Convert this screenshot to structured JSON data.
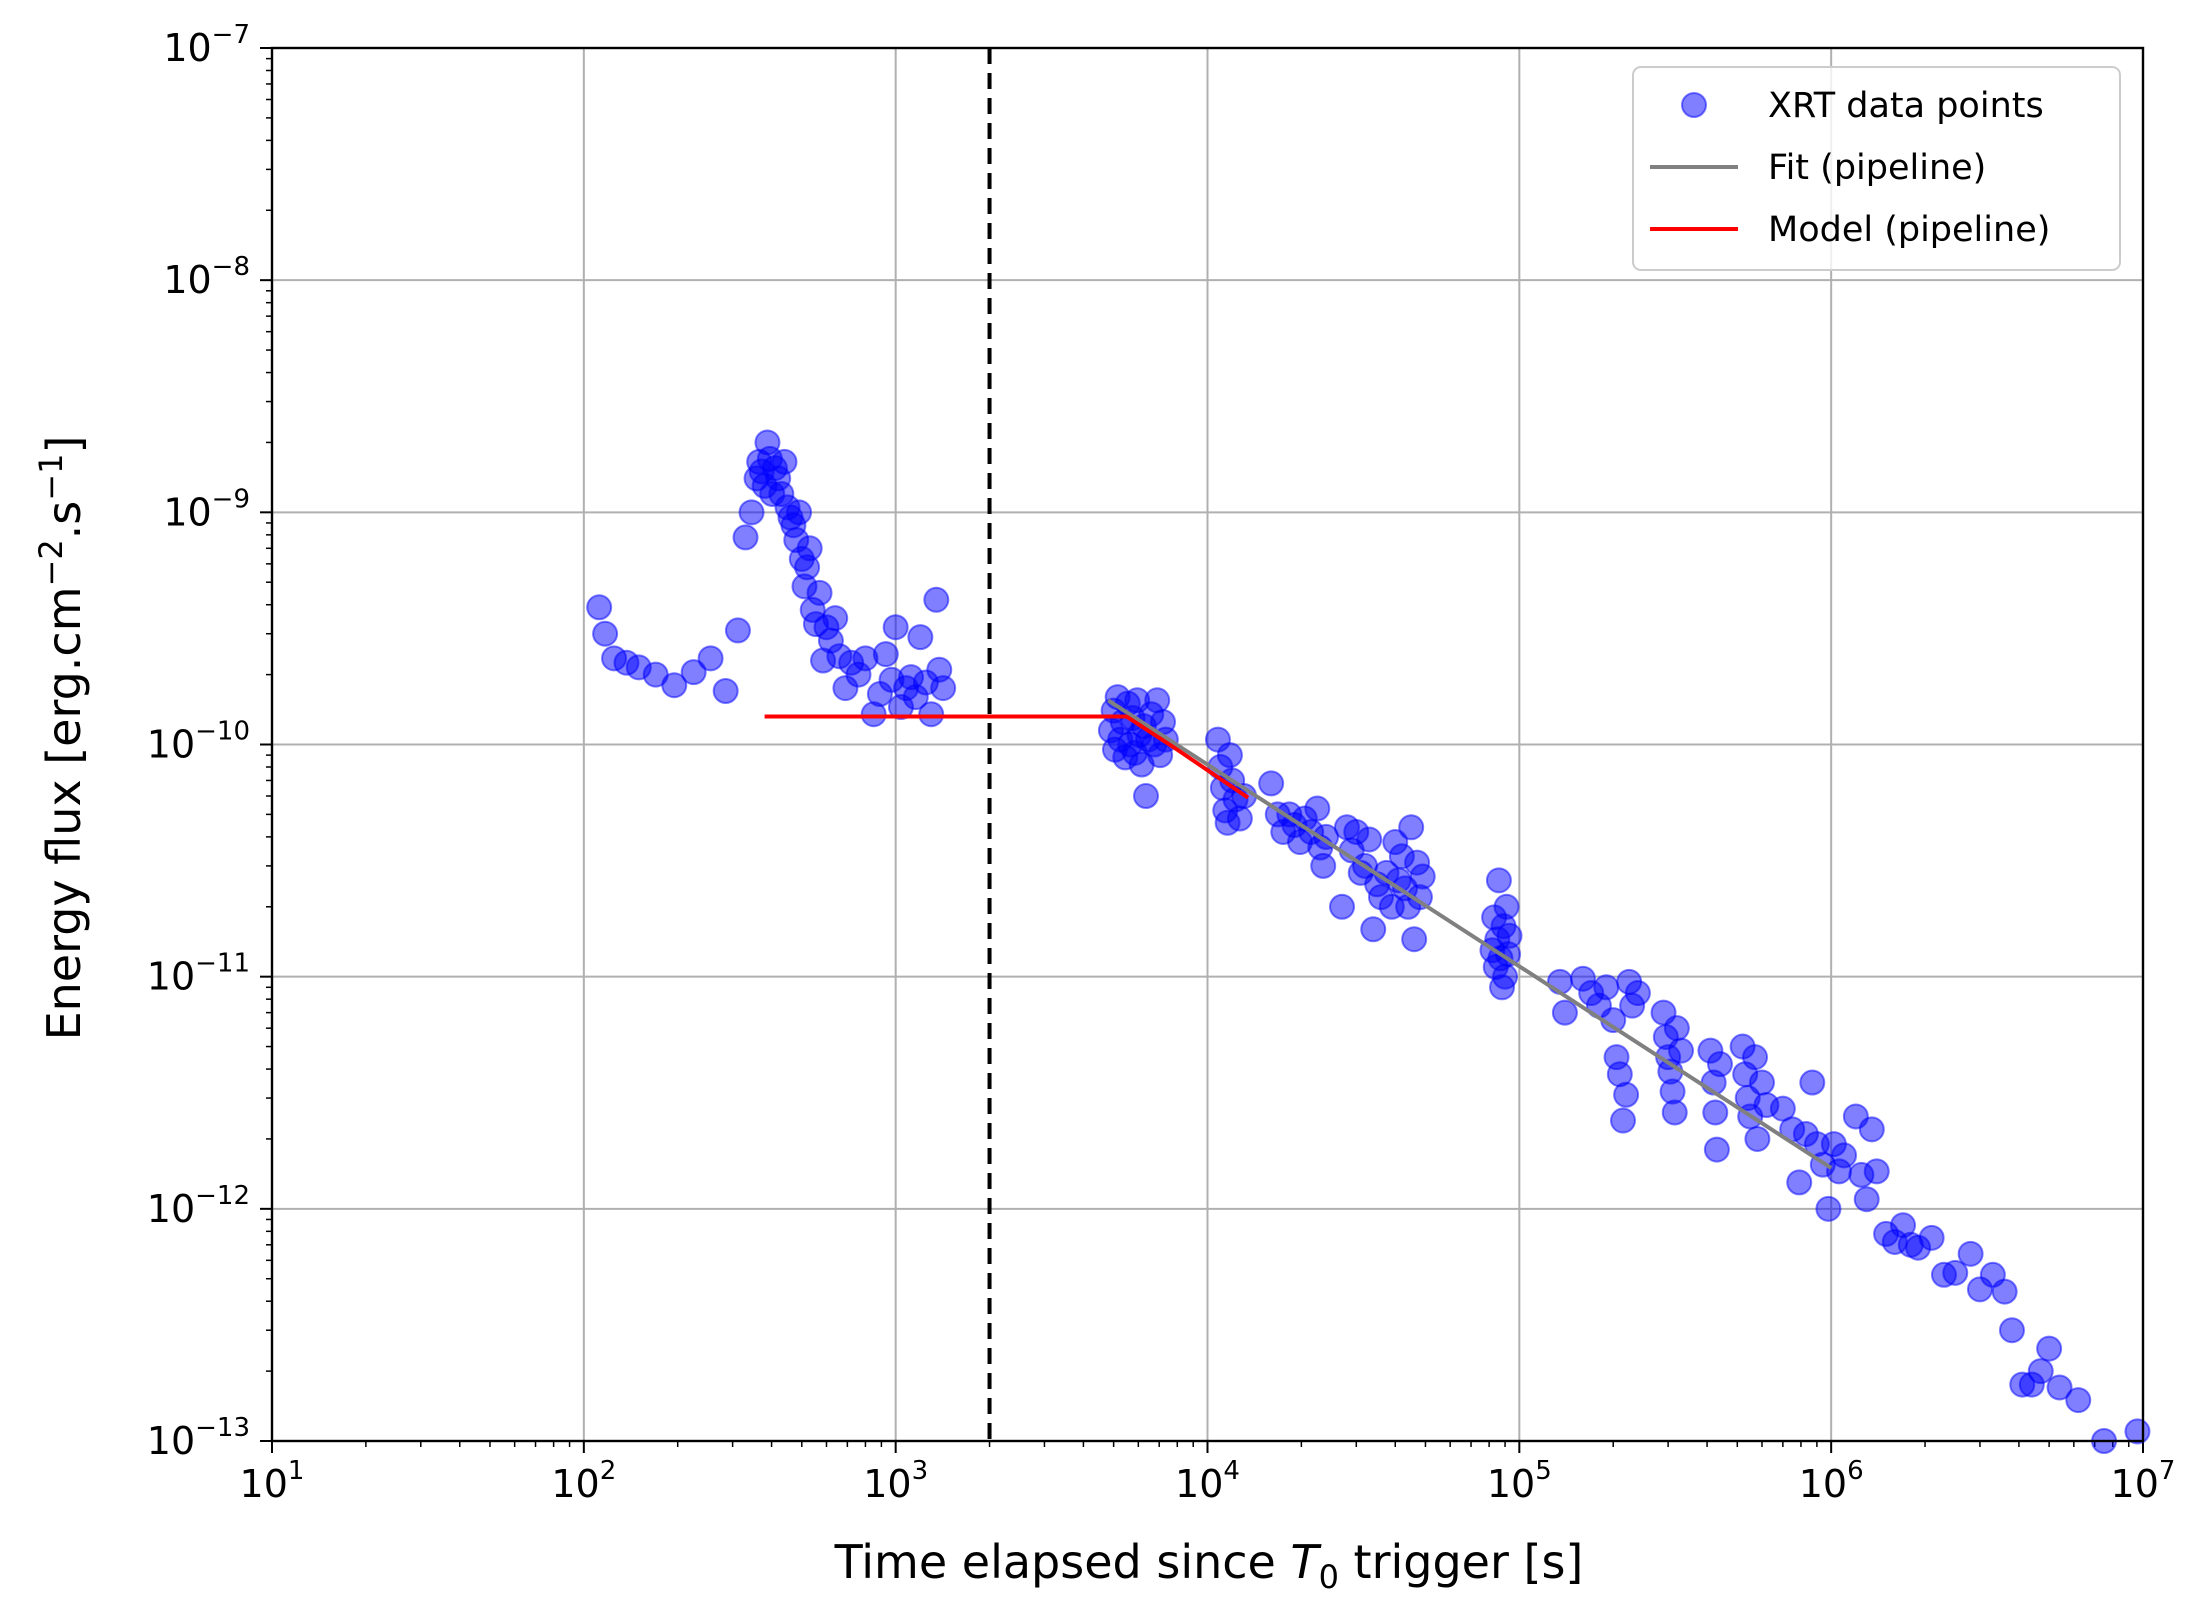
{
  "chart_data": {
    "type": "scatter",
    "xscale": "log",
    "yscale": "log",
    "xlim": [
      10,
      10000000
    ],
    "ylim": [
      1e-13,
      1e-07
    ],
    "xlabel": {
      "pre": "Time elapsed since ",
      "sym": "T",
      "sub": "0",
      "post": " trigger [s]"
    },
    "ylabel": {
      "text": "Energy flux [erg.cm",
      "sup1": "−2",
      "mid": ".s",
      "sup2": "−1",
      "end": "]"
    },
    "x_ticks": [
      {
        "base": "10",
        "exp": "1",
        "value": 10
      },
      {
        "base": "10",
        "exp": "2",
        "value": 100
      },
      {
        "base": "10",
        "exp": "3",
        "value": 1000
      },
      {
        "base": "10",
        "exp": "4",
        "value": 10000
      },
      {
        "base": "10",
        "exp": "5",
        "value": 100000
      },
      {
        "base": "10",
        "exp": "6",
        "value": 1000000
      },
      {
        "base": "10",
        "exp": "7",
        "value": 10000000
      }
    ],
    "y_ticks": [
      {
        "base": "10",
        "exp": "−13",
        "value": 1e-13
      },
      {
        "base": "10",
        "exp": "−12",
        "value": 1e-12
      },
      {
        "base": "10",
        "exp": "−11",
        "value": 1e-11
      },
      {
        "base": "10",
        "exp": "−10",
        "value": 1e-10
      },
      {
        "base": "10",
        "exp": "−9",
        "value": 1e-09
      },
      {
        "base": "10",
        "exp": "−8",
        "value": 1e-08
      },
      {
        "base": "10",
        "exp": "−7",
        "value": 1e-07
      }
    ],
    "grid": true,
    "legend_position": "top-right",
    "legend": [
      {
        "label": "XRT data points",
        "kind": "marker",
        "color": "#0000ff"
      },
      {
        "label": "Fit (pipeline)",
        "kind": "line",
        "color": "#808080"
      },
      {
        "label": "Model (pipeline)",
        "kind": "line",
        "color": "#ff0000"
      }
    ],
    "trigger_line": {
      "x": 2000,
      "color": "#000000",
      "style": "dashed"
    },
    "series": [
      {
        "name": "XRT data points",
        "type": "scatter",
        "color": "#0000ff",
        "alpha": 0.5,
        "points": [
          [
            112,
            3.9e-10
          ],
          [
            117,
            3e-10
          ],
          [
            125,
            2.35e-10
          ],
          [
            137,
            2.25e-10
          ],
          [
            150,
            2.15e-10
          ],
          [
            170,
            2e-10
          ],
          [
            195,
            1.8e-10
          ],
          [
            225,
            2.05e-10
          ],
          [
            255,
            2.35e-10
          ],
          [
            285,
            1.7e-10
          ],
          [
            312,
            3.1e-10
          ],
          [
            330,
            7.8e-10
          ],
          [
            345,
            1e-09
          ],
          [
            358,
            1.4e-09
          ],
          [
            365,
            1.65e-09
          ],
          [
            372,
            1.5e-09
          ],
          [
            380,
            1.3e-09
          ],
          [
            388,
            2e-09
          ],
          [
            395,
            1.7e-09
          ],
          [
            402,
            1.2e-09
          ],
          [
            410,
            1.55e-09
          ],
          [
            420,
            1.4e-09
          ],
          [
            430,
            1.2e-09
          ],
          [
            440,
            1.65e-09
          ],
          [
            450,
            1.05e-09
          ],
          [
            460,
            9.5e-10
          ],
          [
            470,
            8.8e-10
          ],
          [
            480,
            7.6e-10
          ],
          [
            490,
            1e-09
          ],
          [
            500,
            6.3e-10
          ],
          [
            510,
            4.8e-10
          ],
          [
            520,
            5.8e-10
          ],
          [
            530,
            7e-10
          ],
          [
            542,
            3.8e-10
          ],
          [
            555,
            3.3e-10
          ],
          [
            570,
            4.5e-10
          ],
          [
            585,
            2.3e-10
          ],
          [
            600,
            3.2e-10
          ],
          [
            620,
            2.8e-10
          ],
          [
            640,
            3.5e-10
          ],
          [
            660,
            2.4e-10
          ],
          [
            690,
            1.75e-10
          ],
          [
            720,
            2.25e-10
          ],
          [
            760,
            2e-10
          ],
          [
            800,
            2.35e-10
          ],
          [
            850,
            1.35e-10
          ],
          [
            890,
            1.65e-10
          ],
          [
            930,
            2.45e-10
          ],
          [
            970,
            1.9e-10
          ],
          [
            1000,
            3.2e-10
          ],
          [
            1040,
            1.45e-10
          ],
          [
            1080,
            1.75e-10
          ],
          [
            1120,
            1.95e-10
          ],
          [
            1160,
            1.6e-10
          ],
          [
            1200,
            2.9e-10
          ],
          [
            1250,
            1.85e-10
          ],
          [
            1300,
            1.35e-10
          ],
          [
            1350,
            4.2e-10
          ],
          [
            1380,
            2.1e-10
          ],
          [
            1420,
            1.75e-10
          ],
          [
            4900,
            1.15e-10
          ],
          [
            5000,
            1.4e-10
          ],
          [
            5050,
            9.5e-11
          ],
          [
            5150,
            1.6e-10
          ],
          [
            5250,
            1.05e-10
          ],
          [
            5350,
            1.25e-10
          ],
          [
            5450,
            8.8e-11
          ],
          [
            5550,
            1.5e-10
          ],
          [
            5650,
            1e-10
          ],
          [
            5750,
            1.3e-10
          ],
          [
            5850,
            9.2e-11
          ],
          [
            5950,
            1.55e-10
          ],
          [
            6050,
            1.1e-10
          ],
          [
            6150,
            8.2e-11
          ],
          [
            6250,
            1.2e-10
          ],
          [
            6350,
            6e-11
          ],
          [
            6450,
            1.05e-10
          ],
          [
            6600,
            1.35e-10
          ],
          [
            6750,
            1e-10
          ],
          [
            6900,
            1.55e-10
          ],
          [
            7050,
            9e-11
          ],
          [
            7200,
            1.25e-10
          ],
          [
            7350,
            1.05e-10
          ],
          [
            10800,
            1.05e-10
          ],
          [
            11000,
            8e-11
          ],
          [
            11200,
            6.5e-11
          ],
          [
            11400,
            5.2e-11
          ],
          [
            11600,
            4.6e-11
          ],
          [
            11800,
            9e-11
          ],
          [
            12000,
            7e-11
          ],
          [
            12300,
            5.8e-11
          ],
          [
            12700,
            4.8e-11
          ],
          [
            13100,
            6e-11
          ],
          [
            16000,
            6.8e-11
          ],
          [
            16800,
            5e-11
          ],
          [
            17500,
            4.2e-11
          ],
          [
            18300,
            5e-11
          ],
          [
            19000,
            4.5e-11
          ],
          [
            19800,
            3.8e-11
          ],
          [
            20500,
            4.8e-11
          ],
          [
            21500,
            4.2e-11
          ],
          [
            22500,
            5.3e-11
          ],
          [
            23000,
            3.6e-11
          ],
          [
            23500,
            3e-11
          ],
          [
            24000,
            4e-11
          ],
          [
            27000,
            2e-11
          ],
          [
            28000,
            4.4e-11
          ],
          [
            29000,
            3.5e-11
          ],
          [
            30000,
            4.2e-11
          ],
          [
            31000,
            2.8e-11
          ],
          [
            32000,
            3e-11
          ],
          [
            33000,
            3.9e-11
          ],
          [
            34000,
            1.6e-11
          ],
          [
            35000,
            2.5e-11
          ],
          [
            36000,
            2.2e-11
          ],
          [
            37500,
            2.8e-11
          ],
          [
            39000,
            2e-11
          ],
          [
            40000,
            3.8e-11
          ],
          [
            41000,
            2.6e-11
          ],
          [
            42000,
            3.3e-11
          ],
          [
            43000,
            2.4e-11
          ],
          [
            44000,
            2e-11
          ],
          [
            45000,
            4.4e-11
          ],
          [
            46000,
            1.45e-11
          ],
          [
            47000,
            3.1e-11
          ],
          [
            48000,
            2.2e-11
          ],
          [
            49000,
            2.7e-11
          ],
          [
            82000,
            1.3e-11
          ],
          [
            83000,
            1.8e-11
          ],
          [
            84000,
            1.1e-11
          ],
          [
            85000,
            1.45e-11
          ],
          [
            86000,
            2.6e-11
          ],
          [
            87000,
            1.2e-11
          ],
          [
            88000,
            9e-12
          ],
          [
            89000,
            1.65e-11
          ],
          [
            90000,
            1e-11
          ],
          [
            91000,
            2e-11
          ],
          [
            92000,
            1.25e-11
          ],
          [
            93000,
            1.5e-11
          ],
          [
            135000,
            9.5e-12
          ],
          [
            140000,
            7e-12
          ],
          [
            160000,
            9.8e-12
          ],
          [
            170000,
            8.5e-12
          ],
          [
            180000,
            7.5e-12
          ],
          [
            190000,
            9e-12
          ],
          [
            200000,
            6.5e-12
          ],
          [
            205000,
            4.5e-12
          ],
          [
            210000,
            3.8e-12
          ],
          [
            215000,
            2.4e-12
          ],
          [
            220000,
            3.1e-12
          ],
          [
            225000,
            9.5e-12
          ],
          [
            230000,
            7.5e-12
          ],
          [
            240000,
            8.5e-12
          ],
          [
            290000,
            7e-12
          ],
          [
            295000,
            5.5e-12
          ],
          [
            300000,
            4.5e-12
          ],
          [
            305000,
            3.9e-12
          ],
          [
            310000,
            3.2e-12
          ],
          [
            315000,
            2.6e-12
          ],
          [
            320000,
            6e-12
          ],
          [
            330000,
            4.8e-12
          ],
          [
            410000,
            4.8e-12
          ],
          [
            420000,
            3.5e-12
          ],
          [
            425000,
            2.6e-12
          ],
          [
            430000,
            1.8e-12
          ],
          [
            440000,
            4.2e-12
          ],
          [
            520000,
            5e-12
          ],
          [
            530000,
            3.8e-12
          ],
          [
            540000,
            3e-12
          ],
          [
            550000,
            2.5e-12
          ],
          [
            570000,
            4.5e-12
          ],
          [
            580000,
            2e-12
          ],
          [
            600000,
            3.5e-12
          ],
          [
            620000,
            2.8e-12
          ],
          [
            700000,
            2.7e-12
          ],
          [
            750000,
            2.2e-12
          ],
          [
            790000,
            1.3e-12
          ],
          [
            830000,
            2.1e-12
          ],
          [
            870000,
            3.5e-12
          ],
          [
            900000,
            1.9e-12
          ],
          [
            940000,
            1.55e-12
          ],
          [
            980000,
            1e-12
          ],
          [
            1020000,
            1.9e-12
          ],
          [
            1060000,
            1.45e-12
          ],
          [
            1100000,
            1.7e-12
          ],
          [
            1200000,
            2.5e-12
          ],
          [
            1250000,
            1.4e-12
          ],
          [
            1300000,
            1.1e-12
          ],
          [
            1350000,
            2.2e-12
          ],
          [
            1400000,
            1.45e-12
          ],
          [
            1500000,
            7.8e-13
          ],
          [
            1600000,
            7.2e-13
          ],
          [
            1700000,
            8.5e-13
          ],
          [
            1800000,
            7e-13
          ],
          [
            1900000,
            6.8e-13
          ],
          [
            2100000,
            7.5e-13
          ],
          [
            2300000,
            5.2e-13
          ],
          [
            2500000,
            5.3e-13
          ],
          [
            2800000,
            6.4e-13
          ],
          [
            3000000,
            4.5e-13
          ],
          [
            3300000,
            5.2e-13
          ],
          [
            3600000,
            4.4e-13
          ],
          [
            3800000,
            3e-13
          ],
          [
            4100000,
            1.75e-13
          ],
          [
            4400000,
            1.75e-13
          ],
          [
            4700000,
            2e-13
          ],
          [
            5000000,
            2.5e-13
          ],
          [
            5400000,
            1.7e-13
          ],
          [
            6200000,
            1.5e-13
          ],
          [
            7500000,
            1e-13
          ],
          [
            9600000,
            1.1e-13
          ]
        ]
      },
      {
        "name": "Fit (pipeline)",
        "type": "line",
        "color": "#808080",
        "points": [
          [
            4800,
            1.55e-10
          ],
          [
            1000000,
            1.5e-12
          ]
        ]
      },
      {
        "name": "Model (pipeline)",
        "type": "line",
        "color": "#ff0000",
        "points": [
          [
            380,
            1.32e-10
          ],
          [
            5500,
            1.32e-10
          ],
          [
            8000,
            9.5e-11
          ],
          [
            13500,
            5.9e-11
          ]
        ]
      }
    ]
  }
}
